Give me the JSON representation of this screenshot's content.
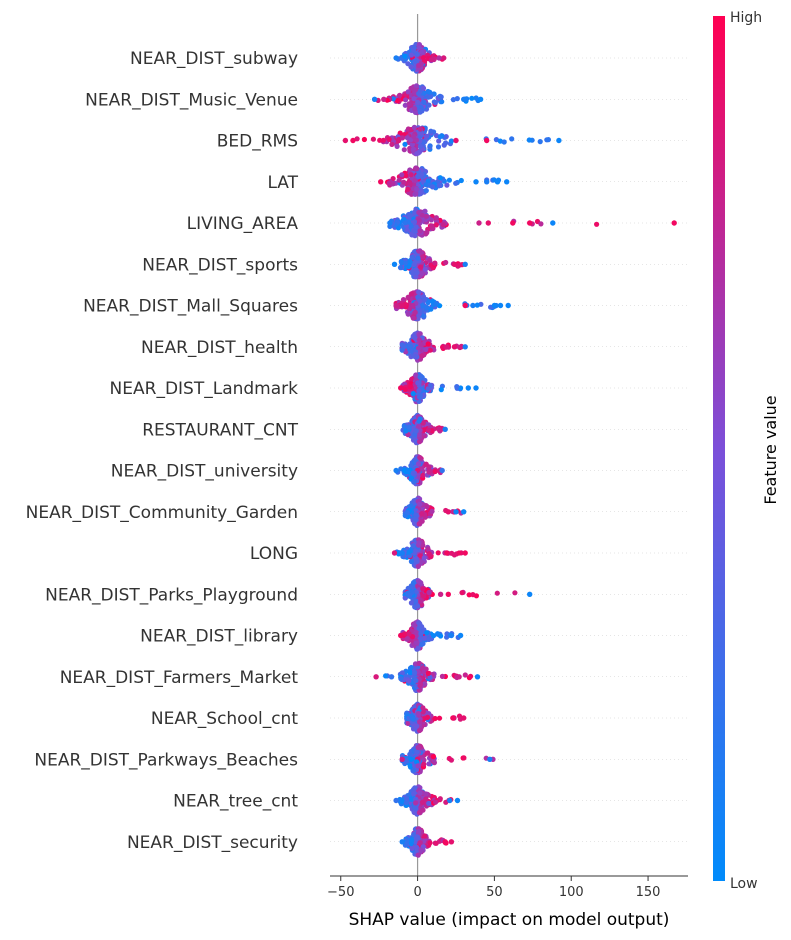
{
  "chart_data": {
    "type": "scatter",
    "xlabel": "SHAP value (impact on model output)",
    "xlim": [
      -57,
      176
    ],
    "xticks": [
      {
        "value": -50,
        "label": "−50"
      },
      {
        "value": 0,
        "label": "0"
      },
      {
        "value": 50,
        "label": "50"
      },
      {
        "value": 100,
        "label": "100"
      },
      {
        "value": 150,
        "label": "150"
      }
    ],
    "colorbar": {
      "title": "Feature value",
      "high_label": "High",
      "low_label": "Low",
      "high_color": "#ff0052",
      "low_color": "#008bfb"
    },
    "features": [
      {
        "name": "NEAR_DIST_subway",
        "min": -15,
        "max": 18,
        "spread": 7,
        "hi_side": 1,
        "outliers": [
          {
            "x": 17,
            "v": 0.85
          },
          {
            "x": 14,
            "v": 0.7
          },
          {
            "x": -14,
            "v": 0.1
          }
        ]
      },
      {
        "name": "NEAR_DIST_Music_Venue",
        "min": -28,
        "max": 42,
        "spread": 10,
        "hi_side": -1,
        "outliers": [
          {
            "x": 41,
            "v": 0.05
          },
          {
            "x": 30,
            "v": 0.1
          },
          {
            "x": -28,
            "v": 0.1
          },
          {
            "x": -22,
            "v": 0.8
          }
        ]
      },
      {
        "name": "BED_RMS",
        "min": -47,
        "max": 92,
        "spread": 14,
        "hi_side": -1,
        "outliers": [
          {
            "x": 92,
            "v": 0.05
          },
          {
            "x": 45,
            "v": 0.95
          },
          {
            "x": 25,
            "v": 0.9
          },
          {
            "x": -47,
            "v": 0.9
          },
          {
            "x": -42,
            "v": 0.95
          }
        ]
      },
      {
        "name": "LAT",
        "min": -24,
        "max": 58,
        "spread": 12,
        "hi_side": -1,
        "outliers": [
          {
            "x": 58,
            "v": 0.05
          },
          {
            "x": 52,
            "v": 0.05
          },
          {
            "x": 45,
            "v": 0.1
          },
          {
            "x": 38,
            "v": 0.05
          },
          {
            "x": -24,
            "v": 0.95
          }
        ]
      },
      {
        "name": "LIVING_AREA",
        "min": -18,
        "max": 167,
        "spread": 12,
        "hi_side": 1,
        "outliers": [
          {
            "x": 167,
            "v": 0.95
          },
          {
            "x": 88,
            "v": 0.05
          },
          {
            "x": 73,
            "v": 0.95
          },
          {
            "x": 62,
            "v": 0.95
          },
          {
            "x": 46,
            "v": 0.9
          },
          {
            "x": 40,
            "v": 0.8
          },
          {
            "x": -18,
            "v": 0.1
          }
        ]
      },
      {
        "name": "NEAR_DIST_sports",
        "min": -15,
        "max": 31,
        "spread": 7,
        "hi_side": 1,
        "outliers": [
          {
            "x": 31,
            "v": 0.1
          },
          {
            "x": 24,
            "v": 0.9
          },
          {
            "x": -15,
            "v": 0.05
          }
        ]
      },
      {
        "name": "NEAR_DIST_Mall_Squares",
        "min": -14,
        "max": 59,
        "spread": 9,
        "hi_side": -1,
        "outliers": [
          {
            "x": 59,
            "v": 0.05
          },
          {
            "x": 54,
            "v": 0.05
          },
          {
            "x": 50,
            "v": 0.05
          },
          {
            "x": 36,
            "v": 0.1
          },
          {
            "x": 31,
            "v": 0.95
          },
          {
            "x": -14,
            "v": 0.8
          }
        ]
      },
      {
        "name": "NEAR_DIST_health",
        "min": -10,
        "max": 31,
        "spread": 7,
        "hi_side": 1,
        "outliers": [
          {
            "x": 31,
            "v": 0.1
          },
          {
            "x": 24,
            "v": 0.9
          },
          {
            "x": 19,
            "v": 0.85
          }
        ]
      },
      {
        "name": "NEAR_DIST_Landmark",
        "min": -11,
        "max": 38,
        "spread": 6,
        "hi_side": -1,
        "outliers": [
          {
            "x": 38,
            "v": 0.05
          },
          {
            "x": 33,
            "v": 0.05
          },
          {
            "x": -11,
            "v": 0.95
          }
        ]
      },
      {
        "name": "RESTAURANT_CNT",
        "min": -10,
        "max": 18,
        "spread": 6,
        "hi_side": 1,
        "outliers": [
          {
            "x": 18,
            "v": 0.1
          },
          {
            "x": 14,
            "v": 0.8
          }
        ]
      },
      {
        "name": "NEAR_DIST_university",
        "min": -14,
        "max": 16,
        "spread": 6,
        "hi_side": 1,
        "outliers": [
          {
            "x": 16,
            "v": 0.2
          },
          {
            "x": -14,
            "v": 0.1
          }
        ]
      },
      {
        "name": "NEAR_DIST_Community_Garden",
        "min": -8,
        "max": 30,
        "spread": 6,
        "hi_side": 1,
        "outliers": [
          {
            "x": 30,
            "v": 0.05
          },
          {
            "x": 25,
            "v": 0.05
          },
          {
            "x": 20,
            "v": 0.9
          }
        ]
      },
      {
        "name": "LONG",
        "min": -15,
        "max": 31,
        "spread": 6,
        "hi_side": 1,
        "outliers": [
          {
            "x": 31,
            "v": 0.95
          },
          {
            "x": 19,
            "v": 0.95
          },
          {
            "x": -15,
            "v": 0.85
          },
          {
            "x": -10,
            "v": 0.1
          }
        ]
      },
      {
        "name": "NEAR_DIST_Parks_Playground",
        "min": -8,
        "max": 73,
        "spread": 6,
        "hi_side": 1,
        "outliers": [
          {
            "x": 73,
            "v": 0.05
          },
          {
            "x": 20,
            "v": 0.95
          },
          {
            "x": 15,
            "v": 0.8
          }
        ]
      },
      {
        "name": "NEAR_DIST_library",
        "min": -11,
        "max": 28,
        "spread": 6,
        "hi_side": -1,
        "outliers": [
          {
            "x": 28,
            "v": 0.05
          },
          {
            "x": 22,
            "v": 0.1
          },
          {
            "x": -11,
            "v": 0.95
          }
        ]
      },
      {
        "name": "NEAR_DIST_Farmers_Market",
        "min": -27,
        "max": 39,
        "spread": 7,
        "hi_side": 1,
        "outliers": [
          {
            "x": 39,
            "v": 0.05
          },
          {
            "x": 27,
            "v": 0.8
          },
          {
            "x": -27,
            "v": 0.85
          },
          {
            "x": -17,
            "v": 0.2
          }
        ]
      },
      {
        "name": "NEAR_School_cnt",
        "min": -7,
        "max": 30,
        "spread": 6,
        "hi_side": 1,
        "outliers": [
          {
            "x": 30,
            "v": 0.9
          },
          {
            "x": 23,
            "v": 0.95
          }
        ]
      },
      {
        "name": "NEAR_DIST_Parkways_Beaches",
        "min": -10,
        "max": 49,
        "spread": 7,
        "hi_side": 1,
        "outliers": [
          {
            "x": 49,
            "v": 0.7
          },
          {
            "x": 47,
            "v": 0.1
          },
          {
            "x": -10,
            "v": 0.8
          }
        ]
      },
      {
        "name": "NEAR_tree_cnt",
        "min": -14,
        "max": 26,
        "spread": 7,
        "hi_side": 1,
        "outliers": [
          {
            "x": 26,
            "v": 0.05
          },
          {
            "x": 21,
            "v": 0.1
          },
          {
            "x": -14,
            "v": 0.2
          }
        ]
      },
      {
        "name": "NEAR_DIST_security",
        "min": -10,
        "max": 22,
        "spread": 5,
        "hi_side": 1,
        "outliers": [
          {
            "x": 22,
            "v": 0.9
          },
          {
            "x": 18,
            "v": 0.95
          },
          {
            "x": -10,
            "v": 0.1
          }
        ]
      }
    ]
  }
}
